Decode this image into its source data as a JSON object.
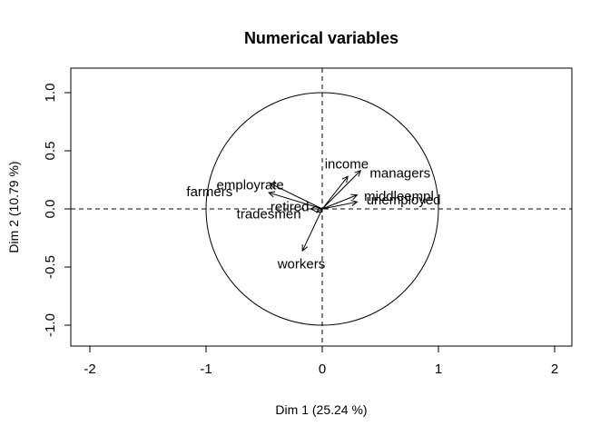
{
  "chart_data": {
    "type": "scatter",
    "subtype": "pca-correlation-circle",
    "title": "Numerical variables",
    "xlabel": "Dim 1 (25.24 %)",
    "ylabel": "Dim 2 (10.79 %)",
    "xlim": [
      -2.2,
      2.2
    ],
    "ylim": [
      -1.2,
      1.2
    ],
    "x_ticks": [
      -2,
      -1,
      0,
      1,
      2
    ],
    "y_ticks": [
      -1.0,
      -0.5,
      0.0,
      0.5,
      1.0
    ],
    "x_tick_labels": [
      "-2",
      "-1",
      "0",
      "1",
      "2"
    ],
    "y_tick_labels": [
      "-1.0",
      "-0.5",
      "0.0",
      "0.5",
      "1.0"
    ],
    "unit_circle": true,
    "reference_lines": {
      "x": 0,
      "y": 0,
      "style": "dashed"
    },
    "grid": false,
    "variables": [
      {
        "name": "income",
        "x": 0.22,
        "y": 0.28,
        "label_x": 0.21,
        "label_y": 0.38
      },
      {
        "name": "managers",
        "x": 0.33,
        "y": 0.33,
        "label_x": 0.67,
        "label_y": 0.3
      },
      {
        "name": "middleempl",
        "x": 0.3,
        "y": 0.12,
        "label_x": 0.66,
        "label_y": 0.1
      },
      {
        "name": "unemployed",
        "x": 0.3,
        "y": 0.06,
        "label_x": 0.7,
        "label_y": 0.07
      },
      {
        "name": "employrate",
        "x": -0.45,
        "y": 0.22,
        "label_x": -0.62,
        "label_y": 0.2
      },
      {
        "name": "farmers",
        "x": -0.46,
        "y": 0.14,
        "label_x": -0.97,
        "label_y": 0.14
      },
      {
        "name": "retired",
        "x": -0.1,
        "y": 0.0,
        "label_x": -0.28,
        "label_y": 0.01
      },
      {
        "name": "tradesmen",
        "x": -0.05,
        "y": -0.03,
        "label_x": -0.46,
        "label_y": -0.05
      },
      {
        "name": "workers",
        "x": -0.17,
        "y": -0.36,
        "label_x": -0.18,
        "label_y": -0.48
      }
    ]
  }
}
